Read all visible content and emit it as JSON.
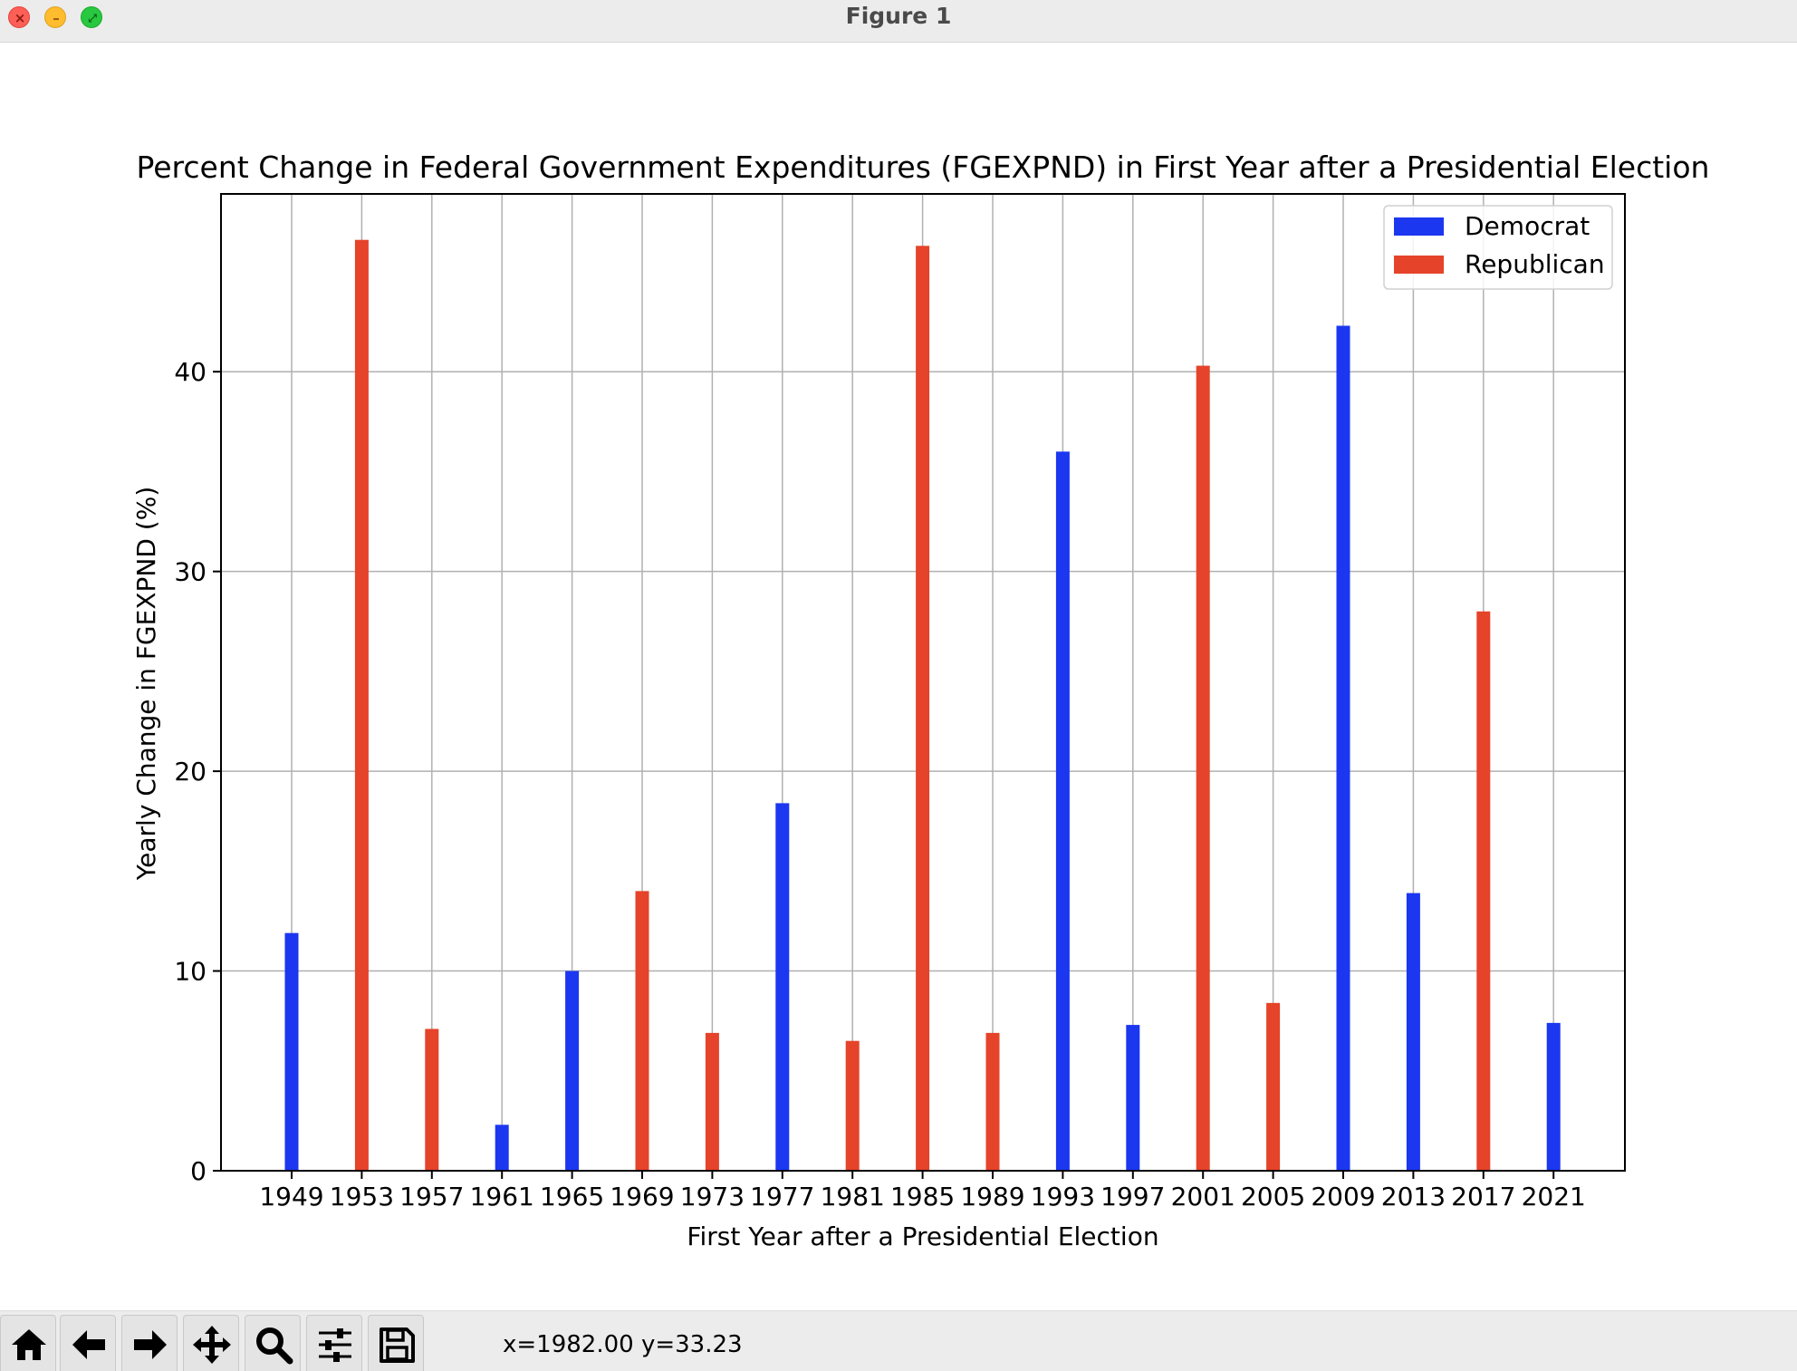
{
  "window": {
    "title": "Figure 1",
    "controls": [
      "close-icon",
      "minimize-icon",
      "zoom-icon"
    ]
  },
  "toolbar": {
    "buttons": [
      {
        "name": "home-button",
        "icon": "home-icon"
      },
      {
        "name": "back-button",
        "icon": "arrow-left-icon"
      },
      {
        "name": "forward-button",
        "icon": "arrow-right-icon"
      },
      {
        "name": "pan-button",
        "icon": "move-icon"
      },
      {
        "name": "zoom-button",
        "icon": "magnifier-icon"
      },
      {
        "name": "configure-subplots-button",
        "icon": "sliders-icon"
      },
      {
        "name": "save-button",
        "icon": "floppy-disk-icon"
      }
    ],
    "coords": "x=1982.00 y=33.23"
  },
  "chart_data": {
    "type": "bar",
    "title": "Percent Change in Federal Government Expenditures (FGEXPND) in First Year after a Presidential Election",
    "xlabel": "First Year after a Presidential Election",
    "ylabel": "Yearly Change in FGEXPND (%)",
    "ylim": [
      0,
      48.9
    ],
    "yticks": [
      0,
      10,
      20,
      30,
      40
    ],
    "grid": true,
    "legend_position": "top-right",
    "categories": [
      "1949",
      "1953",
      "1957",
      "1961",
      "1965",
      "1969",
      "1973",
      "1977",
      "1981",
      "1985",
      "1989",
      "1993",
      "1997",
      "2001",
      "2005",
      "2009",
      "2013",
      "2017",
      "2021"
    ],
    "values": [
      11.9,
      46.6,
      7.1,
      2.3,
      10.0,
      14.0,
      6.9,
      18.4,
      6.5,
      46.3,
      6.9,
      36.0,
      7.3,
      40.3,
      8.4,
      42.3,
      13.9,
      28.0,
      7.4
    ],
    "parties": [
      "Democrat",
      "Republican",
      "Republican",
      "Democrat",
      "Democrat",
      "Republican",
      "Republican",
      "Democrat",
      "Republican",
      "Republican",
      "Republican",
      "Democrat",
      "Democrat",
      "Republican",
      "Republican",
      "Democrat",
      "Democrat",
      "Republican",
      "Democrat"
    ],
    "series": [
      {
        "name": "Democrat",
        "color": "#1b37f0"
      },
      {
        "name": "Republican",
        "color": "#e5432a"
      }
    ]
  }
}
